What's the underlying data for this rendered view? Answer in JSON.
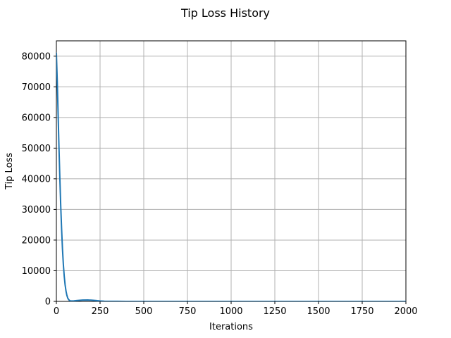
{
  "chart_data": {
    "type": "line",
    "title": "Tip Loss History",
    "xlabel": "Iterations",
    "ylabel": "Tip Loss",
    "xlim": [
      0,
      2000
    ],
    "ylim": [
      0,
      85000
    ],
    "xticks": [
      0,
      250,
      500,
      750,
      1000,
      1250,
      1500,
      1750,
      2000
    ],
    "yticks": [
      0,
      10000,
      20000,
      30000,
      40000,
      50000,
      60000,
      70000,
      80000
    ],
    "grid": true,
    "line_color": "#1f77b4",
    "series": [
      {
        "name": "",
        "x": [
          0,
          5,
          10,
          15,
          20,
          25,
          30,
          35,
          40,
          45,
          50,
          55,
          60,
          65,
          70,
          75,
          80,
          90,
          100,
          120,
          150,
          180,
          200,
          230,
          250,
          275,
          300,
          350,
          400,
          500,
          600,
          750,
          1000,
          1250,
          1500,
          1750,
          2000
        ],
        "y": [
          81000,
          72000,
          61000,
          50000,
          40000,
          31000,
          23500,
          17000,
          12000,
          8200,
          5400,
          3400,
          2000,
          1100,
          600,
          320,
          180,
          150,
          180,
          300,
          420,
          450,
          400,
          250,
          140,
          70,
          40,
          20,
          10,
          5,
          3,
          2,
          1,
          1,
          0,
          0,
          0
        ]
      }
    ]
  }
}
